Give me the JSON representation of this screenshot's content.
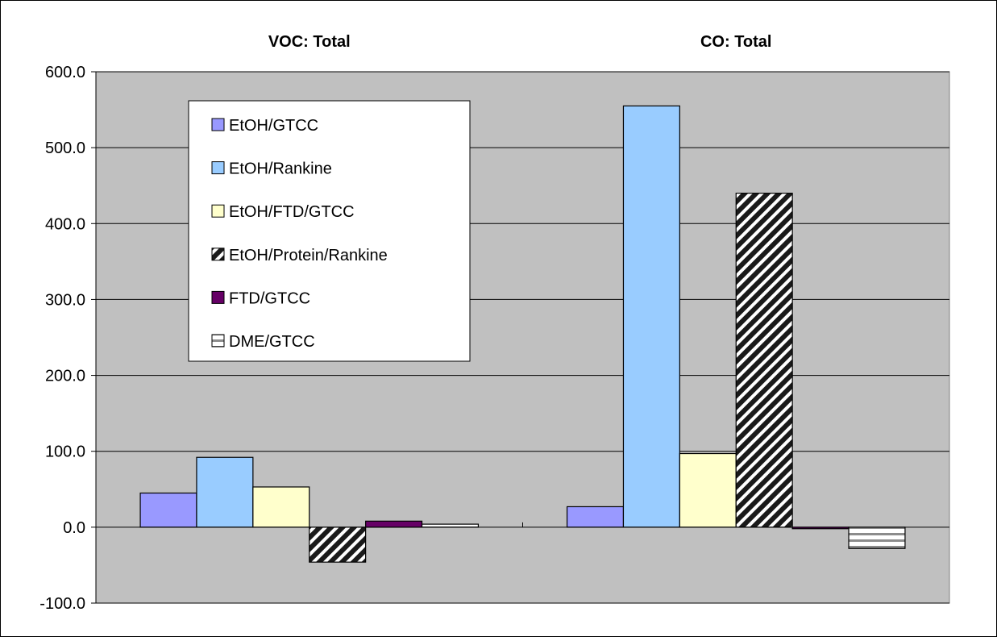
{
  "chart_data": {
    "type": "bar",
    "categories": [
      "VOC: Total",
      "CO: Total"
    ],
    "series": [
      {
        "name": "EtOH/GTCC",
        "values": [
          45.0,
          27.0
        ],
        "color": "#9999ff",
        "pattern": "solid"
      },
      {
        "name": "EtOH/Rankine",
        "values": [
          92.0,
          555.0
        ],
        "color": "#99ccff",
        "pattern": "solid"
      },
      {
        "name": "EtOH/FTD/GTCC",
        "values": [
          53.0,
          97.0
        ],
        "color": "#ffffcc",
        "pattern": "solid"
      },
      {
        "name": "EtOH/Protein/Rankine",
        "values": [
          -46.0,
          440.0
        ],
        "color": "#333333",
        "pattern": "diagonal-stripes"
      },
      {
        "name": "FTD/GTCC",
        "values": [
          8.0,
          -2.0
        ],
        "color": "#660066",
        "pattern": "solid"
      },
      {
        "name": "DME/GTCC",
        "values": [
          4.0,
          -28.0
        ],
        "color": "#ffffff",
        "pattern": "horizontal-stripes"
      }
    ],
    "ylim": [
      -100,
      600
    ],
    "yticks": [
      "600.0",
      "500.0",
      "400.0",
      "300.0",
      "200.0",
      "100.0",
      "0.0",
      "-100.0"
    ],
    "ytick_values": [
      600,
      500,
      400,
      300,
      200,
      100,
      0,
      -100
    ],
    "grid": true,
    "legend": "top-left",
    "plot_background": "#c0c0c0"
  }
}
